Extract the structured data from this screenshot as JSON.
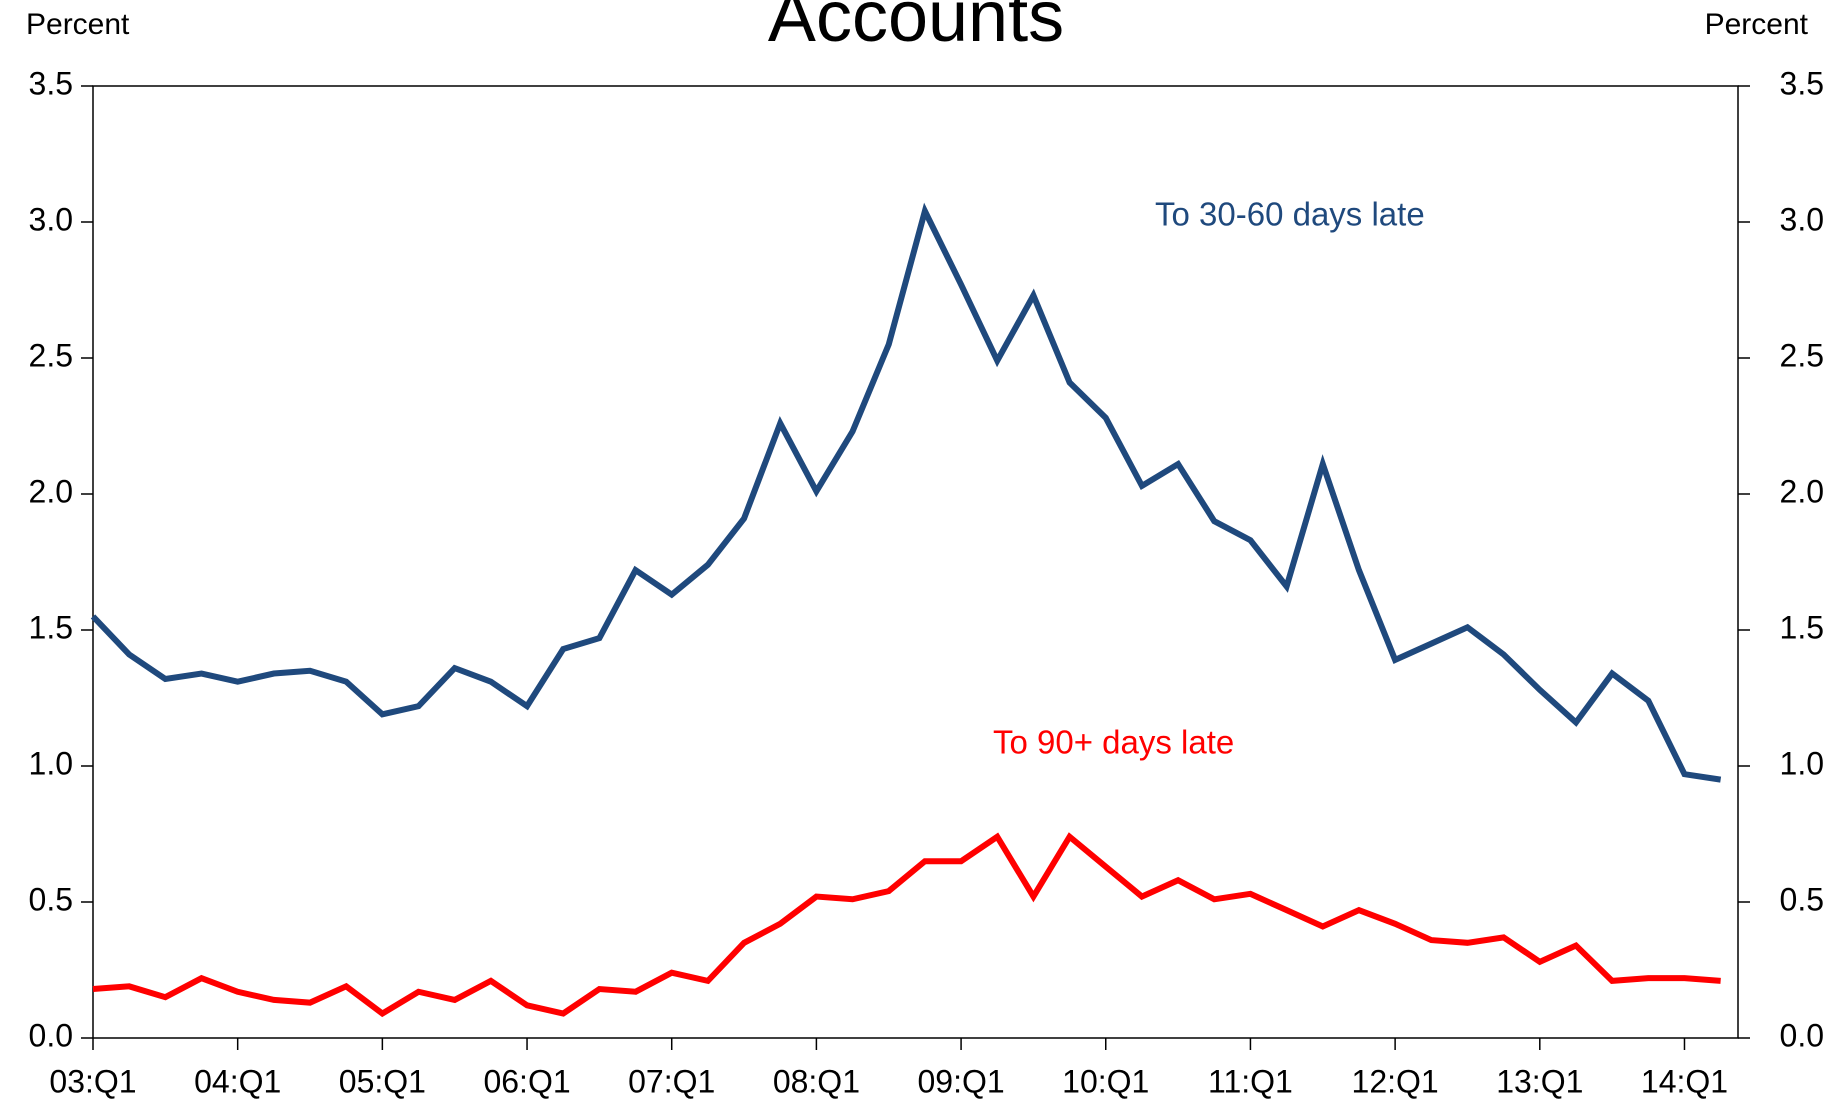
{
  "chart_data": {
    "type": "line",
    "title": "Accounts",
    "ylabel": "Percent",
    "y2label": "Percent",
    "categories": [
      "03:Q1",
      null,
      null,
      null,
      "04:Q1",
      null,
      null,
      null,
      "05:Q1",
      null,
      null,
      null,
      "06:Q1",
      null,
      null,
      null,
      "07:Q1",
      null,
      null,
      null,
      "08:Q1",
      null,
      null,
      null,
      "09:Q1",
      null,
      null,
      null,
      "10:Q1",
      null,
      null,
      null,
      "11:Q1",
      null,
      null,
      null,
      "12:Q1",
      null,
      null,
      null,
      "13:Q1",
      null,
      null,
      null,
      "14:Q1",
      null
    ],
    "series": [
      {
        "name": "To 30-60 days late",
        "color": "#1f497d",
        "values": [
          1.55,
          1.41,
          1.32,
          1.34,
          1.31,
          1.34,
          1.35,
          1.31,
          1.19,
          1.22,
          1.36,
          1.31,
          1.22,
          1.43,
          1.47,
          1.72,
          1.63,
          1.74,
          1.91,
          2.26,
          2.01,
          2.23,
          2.55,
          3.04,
          2.77,
          2.49,
          2.73,
          2.41,
          2.28,
          2.03,
          2.11,
          1.9,
          1.83,
          1.66,
          2.11,
          1.72,
          1.39,
          1.45,
          1.51,
          1.41,
          1.28,
          1.16,
          1.34,
          1.24,
          0.97,
          0.95
        ]
      },
      {
        "name": "To 90+ days late",
        "color": "#ff0000",
        "values": [
          0.18,
          0.19,
          0.15,
          0.22,
          0.17,
          0.14,
          0.13,
          0.19,
          0.09,
          0.17,
          0.14,
          0.21,
          0.12,
          0.09,
          0.18,
          0.17,
          0.24,
          0.21,
          0.35,
          0.42,
          0.52,
          0.51,
          0.54,
          0.65,
          0.65,
          0.74,
          0.52,
          0.74,
          0.63,
          0.52,
          0.58,
          0.51,
          0.53,
          0.47,
          0.41,
          0.47,
          0.42,
          0.36,
          0.35,
          0.37,
          0.28,
          0.34,
          0.21,
          0.22,
          0.22,
          0.21
        ]
      }
    ],
    "ylim": [
      0,
      3.5
    ],
    "yticks": [
      {
        "value": 0,
        "label": "0.0"
      },
      0.5,
      {
        "value": 1,
        "label": "1.0"
      },
      1.5,
      {
        "value": 2,
        "label": "2.0"
      },
      2.5,
      {
        "value": 3,
        "label": "3.0"
      },
      3.5
    ],
    "y2lim": [
      0,
      3.5
    ],
    "y2ticks": [
      {
        "value": 0,
        "label": "0.0"
      },
      0.5,
      {
        "value": 1,
        "label": "1.0"
      },
      1.5,
      {
        "value": 2,
        "label": "2.0"
      },
      2.5,
      {
        "value": 3,
        "label": "3.0"
      },
      3.5
    ],
    "grid": false
  }
}
